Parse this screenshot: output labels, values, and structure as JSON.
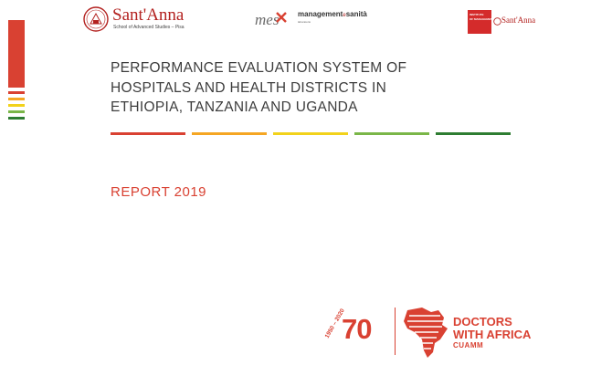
{
  "colors": {
    "red": "#d94132",
    "orange": "#f5a623",
    "yellow": "#f2d21b",
    "light_green": "#7ab648",
    "dark_green": "#2e7d32"
  },
  "logos": {
    "santanna": {
      "name": "Sant'Anna",
      "subtitle": "School of Advanced Studies – Pisa"
    },
    "mes": {
      "mark": "mes",
      "name_part1": "management",
      "name_part2": "e",
      "name_part3": "sanità",
      "subtitle": "laboratorio"
    },
    "institute": {
      "line1": "INSTITUTE",
      "line2": "OF MANAGEMENT",
      "name": "Sant'Anna"
    }
  },
  "title": {
    "line1": "PERFORMANCE EVALUATION SYSTEM OF",
    "line2": "HOSPITALS AND HEALTH DISTRICTS IN",
    "line3": "ETHIOPIA, TANZANIA AND UGANDA"
  },
  "report": "REPORT 2019",
  "anniversary": {
    "years": "1950 – 2020",
    "number": "70",
    "org_line1": "DOCTORS",
    "org_line2": "WITH AFRICA",
    "org_line3": "CUAMM"
  }
}
